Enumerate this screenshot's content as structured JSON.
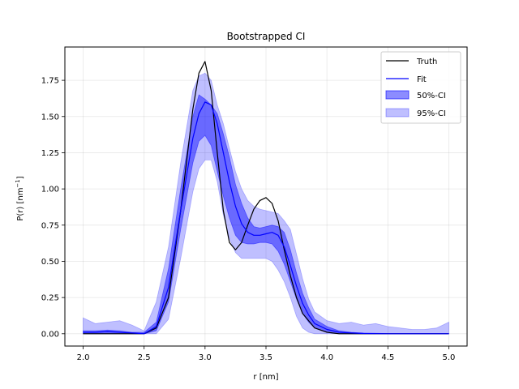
{
  "chart_data": {
    "type": "line",
    "title": "Bootstrapped CI",
    "xlabel": "r [nm]",
    "ylabel_main": "P(r) [nm",
    "ylabel_sup": "−1",
    "ylabel_close": "]",
    "xlim": [
      1.85,
      5.15
    ],
    "ylim": [
      -0.085,
      1.98
    ],
    "xticks": [
      2.0,
      2.5,
      3.0,
      3.5,
      4.0,
      4.5,
      5.0
    ],
    "xtick_labels": [
      "2.0",
      "2.5",
      "3.0",
      "3.5",
      "4.0",
      "4.5",
      "5.0"
    ],
    "yticks": [
      0.0,
      0.25,
      0.5,
      0.75,
      1.0,
      1.25,
      1.5,
      1.75
    ],
    "ytick_labels": [
      "0.00",
      "0.25",
      "0.50",
      "0.75",
      "1.00",
      "1.25",
      "1.50",
      "1.75"
    ],
    "grid": true,
    "legend_position": "top-right",
    "colors": {
      "truth": "#000000",
      "fit": "#0000ff",
      "ci50": "#0000ff",
      "ci95": "#0000ff"
    },
    "series": [
      {
        "name": "Truth",
        "style": "line",
        "x": [
          2.0,
          2.5,
          2.6,
          2.7,
          2.8,
          2.9,
          2.95,
          3.0,
          3.05,
          3.1,
          3.15,
          3.2,
          3.25,
          3.3,
          3.35,
          3.4,
          3.45,
          3.5,
          3.55,
          3.6,
          3.65,
          3.7,
          3.75,
          3.8,
          3.9,
          4.0,
          4.1,
          4.2,
          5.0
        ],
        "y": [
          0.0,
          0.0,
          0.04,
          0.25,
          0.85,
          1.55,
          1.8,
          1.88,
          1.68,
          1.25,
          0.85,
          0.63,
          0.58,
          0.63,
          0.75,
          0.86,
          0.92,
          0.94,
          0.9,
          0.78,
          0.58,
          0.4,
          0.25,
          0.14,
          0.04,
          0.01,
          0.0,
          0.0,
          0.0
        ]
      },
      {
        "name": "Fit",
        "style": "line",
        "x": [
          2.0,
          2.1,
          2.2,
          2.3,
          2.4,
          2.5,
          2.6,
          2.7,
          2.8,
          2.9,
          2.95,
          3.0,
          3.05,
          3.1,
          3.15,
          3.2,
          3.25,
          3.3,
          3.35,
          3.4,
          3.45,
          3.5,
          3.55,
          3.6,
          3.65,
          3.7,
          3.75,
          3.8,
          3.85,
          3.9,
          4.0,
          4.1,
          4.2,
          4.3,
          4.5,
          4.7,
          5.0
        ],
        "y": [
          0.01,
          0.01,
          0.015,
          0.01,
          0.005,
          0.0,
          0.05,
          0.32,
          0.85,
          1.35,
          1.52,
          1.6,
          1.58,
          1.45,
          1.25,
          1.05,
          0.88,
          0.76,
          0.7,
          0.68,
          0.68,
          0.69,
          0.7,
          0.68,
          0.6,
          0.47,
          0.33,
          0.21,
          0.13,
          0.07,
          0.03,
          0.01,
          0.005,
          0.002,
          0.0,
          0.0,
          0.0
        ]
      },
      {
        "name": "50%-CI",
        "style": "band",
        "x": [
          2.0,
          2.1,
          2.2,
          2.3,
          2.4,
          2.5,
          2.6,
          2.7,
          2.8,
          2.9,
          2.95,
          3.0,
          3.05,
          3.1,
          3.15,
          3.2,
          3.25,
          3.3,
          3.35,
          3.4,
          3.45,
          3.5,
          3.55,
          3.6,
          3.65,
          3.7,
          3.75,
          3.8,
          3.85,
          3.9,
          4.0,
          4.1,
          4.2,
          4.3,
          4.5,
          4.7,
          5.0
        ],
        "lower": [
          0.0,
          0.0,
          0.0,
          0.0,
          0.0,
          0.0,
          0.02,
          0.22,
          0.72,
          1.18,
          1.33,
          1.37,
          1.3,
          1.12,
          0.95,
          0.8,
          0.68,
          0.63,
          0.62,
          0.62,
          0.63,
          0.63,
          0.62,
          0.57,
          0.48,
          0.36,
          0.24,
          0.14,
          0.08,
          0.04,
          0.01,
          0.0,
          0.0,
          0.0,
          0.0,
          0.0,
          0.0
        ],
        "upper": [
          0.02,
          0.02,
          0.025,
          0.02,
          0.01,
          0.01,
          0.08,
          0.45,
          1.0,
          1.5,
          1.65,
          1.62,
          1.58,
          1.52,
          1.38,
          1.22,
          1.03,
          0.9,
          0.8,
          0.74,
          0.73,
          0.74,
          0.75,
          0.74,
          0.7,
          0.58,
          0.42,
          0.28,
          0.18,
          0.1,
          0.05,
          0.02,
          0.01,
          0.005,
          0.002,
          0.002,
          0.002
        ]
      },
      {
        "name": "95%-CI",
        "style": "band",
        "x": [
          2.0,
          2.05,
          2.1,
          2.2,
          2.3,
          2.4,
          2.5,
          2.6,
          2.7,
          2.8,
          2.9,
          2.95,
          3.0,
          3.05,
          3.1,
          3.15,
          3.2,
          3.25,
          3.3,
          3.35,
          3.4,
          3.45,
          3.5,
          3.55,
          3.6,
          3.65,
          3.7,
          3.75,
          3.8,
          3.85,
          3.9,
          4.0,
          4.1,
          4.2,
          4.3,
          4.4,
          4.5,
          4.6,
          4.7,
          4.8,
          4.9,
          5.0
        ],
        "lower": [
          0.0,
          0.0,
          0.0,
          0.0,
          0.0,
          0.0,
          0.0,
          0.0,
          0.1,
          0.52,
          0.98,
          1.14,
          1.2,
          1.2,
          1.05,
          0.82,
          0.66,
          0.56,
          0.52,
          0.52,
          0.52,
          0.52,
          0.52,
          0.5,
          0.44,
          0.36,
          0.25,
          0.12,
          0.04,
          0.01,
          0.0,
          0.0,
          0.0,
          0.0,
          0.0,
          0.0,
          0.0,
          0.0,
          0.0,
          0.0,
          0.0,
          0.0
        ],
        "upper": [
          0.11,
          0.09,
          0.07,
          0.08,
          0.09,
          0.06,
          0.02,
          0.22,
          0.6,
          1.18,
          1.68,
          1.78,
          1.8,
          1.75,
          1.58,
          1.45,
          1.28,
          1.12,
          1.0,
          0.92,
          0.88,
          0.86,
          0.85,
          0.84,
          0.83,
          0.78,
          0.72,
          0.55,
          0.38,
          0.24,
          0.15,
          0.09,
          0.07,
          0.08,
          0.06,
          0.07,
          0.05,
          0.04,
          0.03,
          0.03,
          0.04,
          0.08
        ]
      }
    ]
  }
}
